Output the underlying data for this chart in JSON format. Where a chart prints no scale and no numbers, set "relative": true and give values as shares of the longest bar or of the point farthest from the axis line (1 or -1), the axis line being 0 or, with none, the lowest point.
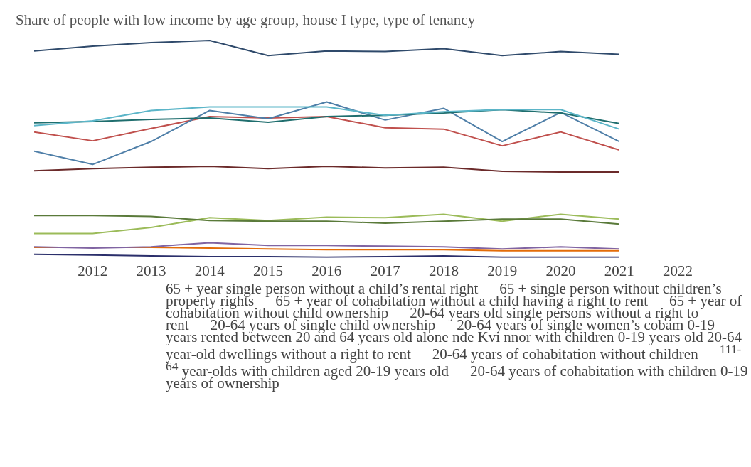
{
  "chart_data": {
    "type": "line",
    "title": "Share of people with low income by age group, house I type, type of tenancy",
    "relative": true,
    "x": [
      2011,
      2012,
      2013,
      2014,
      2015,
      2016,
      2017,
      2018,
      2019,
      2020,
      2021
    ],
    "xlim": [
      2011,
      2022
    ],
    "xticks": [
      2012,
      2013,
      2014,
      2015,
      2016,
      2017,
      2018,
      2019,
      2020,
      2021,
      2022
    ],
    "series": [
      {
        "color": "#2f4a6b",
        "values": [
          0.952,
          0.974,
          0.99,
          1,
          0.93,
          0.952,
          0.949,
          0.962,
          0.93,
          0.949,
          0.936
        ]
      },
      {
        "color": "#5bb5c8",
        "values": [
          0.607,
          0.629,
          0.677,
          0.693,
          0.693,
          0.693,
          0.655,
          0.671,
          0.681,
          0.681,
          0.591
        ]
      },
      {
        "color": "#1f6e6e",
        "values": [
          0.62,
          0.626,
          0.636,
          0.642,
          0.623,
          0.649,
          0.655,
          0.665,
          0.681,
          0.665,
          0.617
        ]
      },
      {
        "color": "#4f7fa8",
        "values": [
          0.489,
          0.428,
          0.534,
          0.677,
          0.639,
          0.716,
          0.633,
          0.687,
          0.534,
          0.668,
          0.534
        ]
      },
      {
        "color": "#c0504d",
        "values": [
          0.578,
          0.537,
          0.594,
          0.649,
          0.642,
          0.649,
          0.597,
          0.591,
          0.514,
          0.578,
          0.495
        ]
      },
      {
        "color": "#6b2a2a",
        "values": [
          0.399,
          0.409,
          0.415,
          0.419,
          0.409,
          0.419,
          0.412,
          0.415,
          0.396,
          0.393,
          0.393
        ]
      },
      {
        "color": "#5a7a3a",
        "values": [
          0.192,
          0.192,
          0.188,
          0.169,
          0.166,
          0.166,
          0.157,
          0.166,
          0.176,
          0.176,
          0.153
        ]
      },
      {
        "color": "#9bbb59",
        "values": [
          0.109,
          0.109,
          0.137,
          0.182,
          0.169,
          0.185,
          0.182,
          0.198,
          0.166,
          0.198,
          0.176
        ]
      },
      {
        "color": "#8064a2",
        "values": [
          0.048,
          0.042,
          0.048,
          0.067,
          0.054,
          0.054,
          0.051,
          0.048,
          0.038,
          0.048,
          0.038
        ]
      },
      {
        "color": "#e36c09",
        "values": [
          0.045,
          0.045,
          0.045,
          0.042,
          0.038,
          0.035,
          0.035,
          0.035,
          0.03,
          0.03,
          0.03
        ]
      },
      {
        "color": "#2b2f6b",
        "values": [
          0.013,
          0.01,
          0.006,
          0.003,
          0.003,
          0,
          0.003,
          0.006,
          0,
          0,
          0
        ]
      }
    ],
    "marker": "none",
    "line_style": "solid",
    "annotations": [
      "65 + year single person without a child’s rental right",
      "65 + single person without children’s property rights",
      "65 + year of cohabitation without a child having a right to rent",
      "65 + year of cohabitation without child ownership",
      "20-64 years old single persons without a right to rent",
      "20-64 years of single child ownership",
      "20-64 years of single women’s cobam 0-19 years rented between 20 and 64 years old alone nde Kvi nnor with children 0-19 years old 20-64 year-old dwellings without a right to rent",
      "20-64 years of cohabitation without children",
      "$^{111-64}$ year-olds with children aged 20-19 years old",
      "20-64 years of cohabitation with children 0-19 years of ownership"
    ]
  }
}
